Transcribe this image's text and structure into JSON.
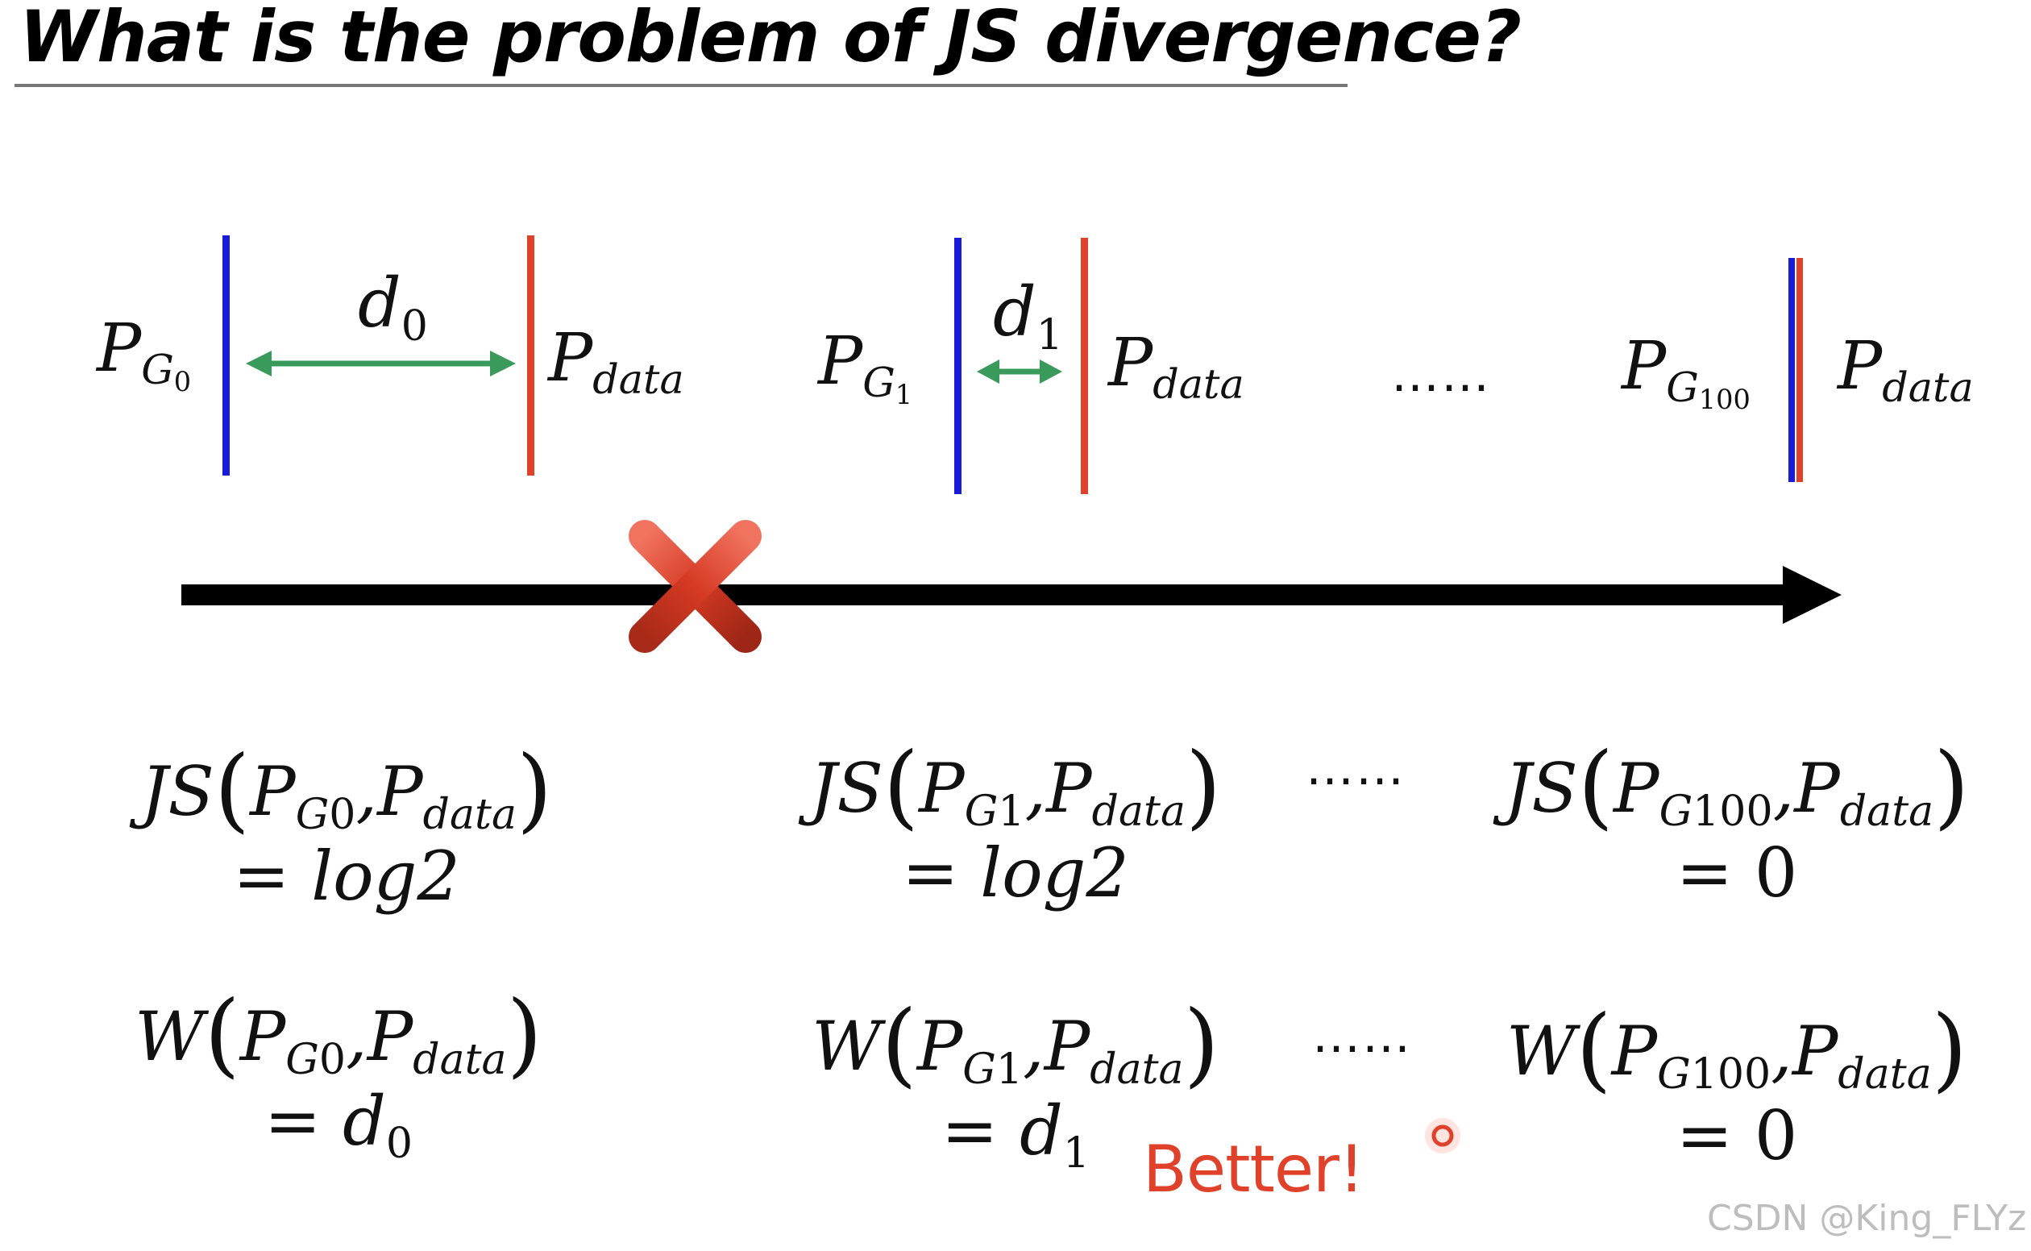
{
  "title": "What is the problem of JS divergence?",
  "top_row": {
    "pg0_label": "P",
    "pg0_sub": "G",
    "pg0_subsub": "0",
    "d0_label": "d",
    "d0_sub": "0",
    "pdata_label": "P",
    "pdata_sub": "data",
    "pg1_label": "P",
    "pg1_sub": "G",
    "pg1_subsub": "1",
    "d1_label": "d",
    "d1_sub": "1",
    "ellipsis": "……",
    "pg100_label": "P",
    "pg100_sub": "G",
    "pg100_subsub": "100"
  },
  "js_row": {
    "js_prefix": "JS",
    "eq_log2": "= log2",
    "eq_zero": "= 0",
    "ellipsis": "……"
  },
  "w_row": {
    "w_prefix": "W",
    "eq_d": "= d",
    "sub0": "0",
    "sub1": "1",
    "eq_zero": "= 0",
    "ellipsis": "……"
  },
  "better": "Better!",
  "watermark": "CSDN @King_FLYz",
  "colors": {
    "generator": "#1a1adb",
    "data": "#e0412a",
    "distance_arrow": "#3a9a5c",
    "cross": "#d63a24"
  },
  "icons": {
    "cross": "red-x-icon",
    "cursor_dot": "cursor-indicator-icon"
  }
}
